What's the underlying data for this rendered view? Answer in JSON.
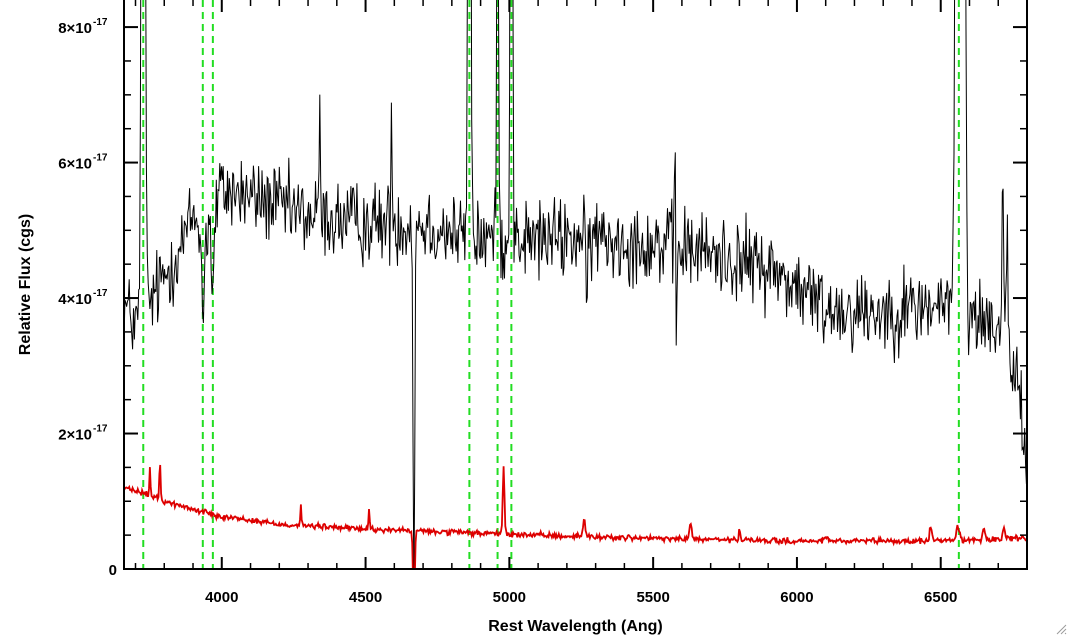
{
  "chart_data": {
    "type": "line",
    "xlabel": "Rest Wavelength (Ang)",
    "ylabel": "Relative Flux (cgs)",
    "xlim": [
      3660,
      6800
    ],
    "ylim": [
      0,
      8.4e-17
    ],
    "x_ticks": [
      4000,
      4500,
      5000,
      5500,
      6000,
      6500
    ],
    "x_tick_labels": [
      "4000",
      "4500",
      "5000",
      "5500",
      "6000",
      "6500"
    ],
    "y_ticks": [
      {
        "value": 0,
        "mantissa": "0",
        "exp": ""
      },
      {
        "value": 2e-17,
        "mantissa": "2×10",
        "exp": "-17"
      },
      {
        "value": 4e-17,
        "mantissa": "4×10",
        "exp": "-17"
      },
      {
        "value": 6e-17,
        "mantissa": "6×10",
        "exp": "-17"
      },
      {
        "value": 8e-17,
        "mantissa": "8×10",
        "exp": "-17"
      }
    ],
    "vertical_markers": {
      "color": "#22dd22",
      "style": "dashed",
      "x": [
        3727,
        3934,
        3969,
        4861,
        4959,
        5007,
        6563
      ]
    },
    "series": [
      {
        "color": "#000000",
        "noise_scale": 6e-18,
        "continuum": [
          [
            3660,
            3.9e-17
          ],
          [
            3700,
            3.6e-17
          ],
          [
            3760,
            4e-17
          ],
          [
            3850,
            4.7e-17
          ],
          [
            3900,
            5.2e-17
          ],
          [
            3950,
            5e-17
          ],
          [
            4000,
            5.6e-17
          ],
          [
            4100,
            5.5e-17
          ],
          [
            4300,
            5.2e-17
          ],
          [
            4500,
            5.1e-17
          ],
          [
            4700,
            5.1e-17
          ],
          [
            4850,
            4.9e-17
          ],
          [
            5000,
            4.85e-17
          ],
          [
            5300,
            4.9e-17
          ],
          [
            5600,
            4.75e-17
          ],
          [
            5900,
            4.45e-17
          ],
          [
            6100,
            3.85e-17
          ],
          [
            6300,
            3.8e-17
          ],
          [
            6500,
            3.9e-17
          ],
          [
            6700,
            3.6e-17
          ],
          [
            6780,
            2.5e-17
          ],
          [
            6800,
            1e-17
          ]
        ],
        "features": [
          [
            3727,
            2e-16,
            5
          ],
          [
            4861,
            1.5e-16,
            4
          ],
          [
            4959,
            6e-17,
            3
          ],
          [
            5007,
            2e-16,
            3
          ],
          [
            6563,
            2.5e-16,
            8
          ],
          [
            6583,
            8e-17,
            4
          ],
          [
            6716,
            2.6e-17,
            3
          ],
          [
            6731,
            2.2e-17,
            3
          ],
          [
            4340,
            1.6e-17,
            2
          ],
          [
            4590,
            1.8e-17,
            2
          ],
          [
            5577,
            1.8e-17,
            2
          ],
          [
            3934,
            -1.4e-17,
            4
          ],
          [
            3969,
            -1.3e-17,
            4
          ],
          [
            4668,
            -5.2e-17,
            3
          ],
          [
            5270,
            -1.8e-17,
            2
          ],
          [
            5580,
            -2.1e-17,
            2
          ]
        ]
      },
      {
        "color": "#dd0000",
        "noise_scale": 4e-19,
        "continuum": [
          [
            3660,
            1.2e-17
          ],
          [
            3740,
            1.1e-17
          ],
          [
            3800,
            1e-17
          ],
          [
            3900,
            8.8e-18
          ],
          [
            4000,
            7.8e-18
          ],
          [
            4200,
            6.6e-18
          ],
          [
            4500,
            5.9e-18
          ],
          [
            5000,
            5.1e-18
          ],
          [
            5500,
            4.5e-18
          ],
          [
            6000,
            4.1e-18
          ],
          [
            6400,
            4.1e-18
          ],
          [
            6800,
            4.5e-18
          ]
        ],
        "features": [
          [
            3750,
            4e-18,
            2
          ],
          [
            3785,
            6e-18,
            2
          ],
          [
            4275,
            3e-18,
            2
          ],
          [
            4512,
            3e-18,
            2
          ],
          [
            4668,
            -1.2e-17,
            3
          ],
          [
            4980,
            1e-17,
            3
          ],
          [
            5260,
            2.5e-18,
            4
          ],
          [
            5630,
            2.5e-18,
            4
          ],
          [
            5800,
            2e-18,
            2
          ],
          [
            6100,
            1e-18,
            4
          ],
          [
            6465,
            2e-18,
            4
          ],
          [
            6560,
            2e-18,
            6
          ],
          [
            6650,
            1.5e-18,
            4
          ],
          [
            6720,
            1.5e-18,
            4
          ]
        ]
      }
    ]
  }
}
